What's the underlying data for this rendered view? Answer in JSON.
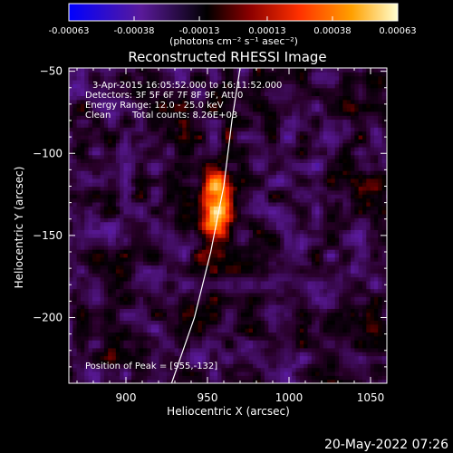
{
  "chart_data": {
    "type": "heatmap",
    "title": "Reconstructed RHESSI Image",
    "xlabel": "Heliocentric X (arcsec)",
    "ylabel": "Heliocentric Y (arcsec)",
    "xlim": [
      865,
      1060
    ],
    "ylim": [
      -240,
      -48
    ],
    "x_ticks": [
      900,
      950,
      1000,
      1050
    ],
    "y_ticks": [
      -50,
      -100,
      -150,
      -200
    ],
    "x_tick_labels": [
      "900",
      "950",
      "1000",
      "1050"
    ],
    "y_tick_labels": [
      "−50",
      "−100",
      "−150",
      "−200"
    ],
    "colorbar": {
      "range": [
        -0.00063,
        0.00063
      ],
      "tick_values": [
        -0.00063,
        -0.00038,
        -0.00013,
        0.00013,
        0.00038,
        0.00063
      ],
      "tick_labels": [
        "-0.00063",
        "-0.00038",
        "-0.00013",
        "0.00013",
        "0.00038",
        "0.00063"
      ],
      "unit_label": "(photons cm⁻² s⁻¹ asec⁻²)",
      "colors": [
        "#0000ff",
        "#5a1a9a",
        "#000000",
        "#8b0000",
        "#ff3000",
        "#ffa000",
        "#ffffd0"
      ]
    },
    "annotations": {
      "time_range": "3-Apr-2015 16:05:52.000 to 16:11:52.000",
      "detectors": "Detectors: 3F 5F 6F 7F 8F 9F, Att 0",
      "energy": "Energy Range: 12.0 - 25.0 keV",
      "clean": "Clean",
      "counts": "Total counts: 8.26E+03",
      "peak": "Position of Peak = [955,-132]"
    },
    "peak": {
      "x": 955,
      "y": -132
    },
    "limb": {
      "points": [
        [
          928,
          -240
        ],
        [
          942,
          -200
        ],
        [
          952,
          -160
        ],
        [
          960,
          -120
        ],
        [
          965,
          -80
        ],
        [
          970,
          -48
        ]
      ]
    },
    "grid": false
  },
  "footer": {
    "date": "20-May-2022 07:26"
  }
}
